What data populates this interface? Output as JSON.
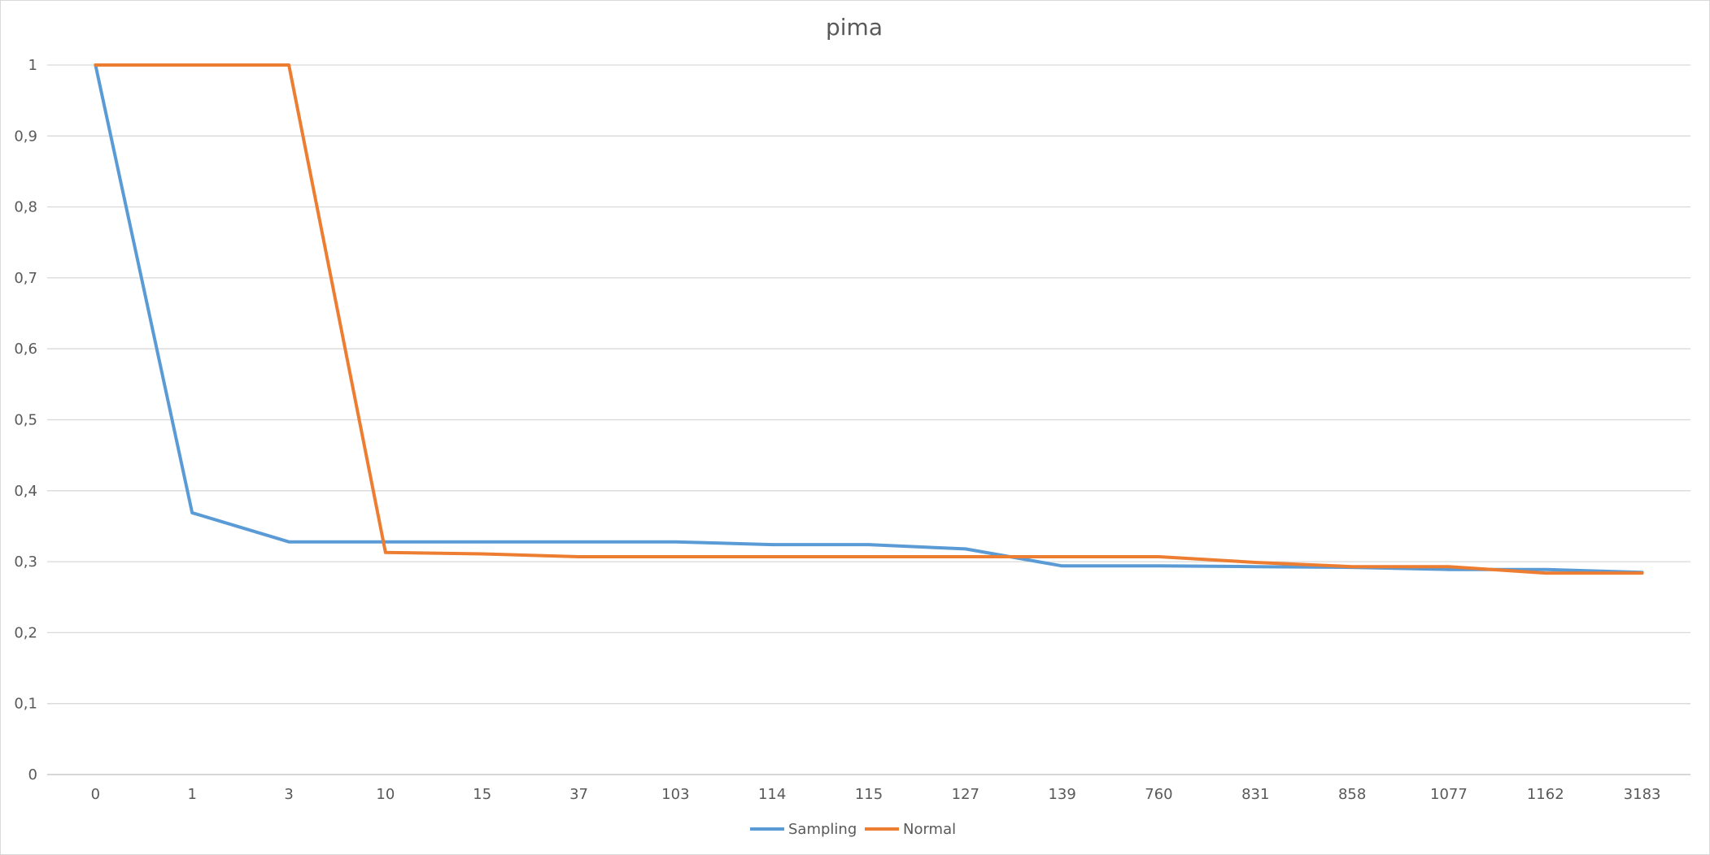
{
  "chart_data": {
    "type": "line",
    "title": "pima",
    "xlabel": "",
    "ylabel": "",
    "categories": [
      "0",
      "1",
      "3",
      "10",
      "15",
      "37",
      "103",
      "114",
      "115",
      "127",
      "139",
      "760",
      "831",
      "858",
      "1077",
      "1162",
      "3183"
    ],
    "ylim": [
      0,
      1
    ],
    "y_ticks": [
      "0",
      "0,1",
      "0,2",
      "0,3",
      "0,4",
      "0,5",
      "0,6",
      "0,7",
      "0,8",
      "0,9",
      "1"
    ],
    "grid": true,
    "legend_position": "bottom",
    "series": [
      {
        "name": "Sampling",
        "color": "#5b9bd5",
        "values": [
          1,
          0.369,
          0.328,
          0.328,
          0.328,
          0.328,
          0.328,
          0.324,
          0.324,
          0.318,
          0.294,
          0.294,
          0.293,
          0.292,
          0.289,
          0.289,
          0.285
        ]
      },
      {
        "name": "Normal",
        "color": "#ed7d31",
        "values": [
          1,
          1,
          1,
          0.313,
          0.311,
          0.307,
          0.307,
          0.307,
          0.307,
          0.307,
          0.307,
          0.307,
          0.299,
          0.293,
          0.293,
          0.284,
          0.284
        ]
      }
    ]
  }
}
